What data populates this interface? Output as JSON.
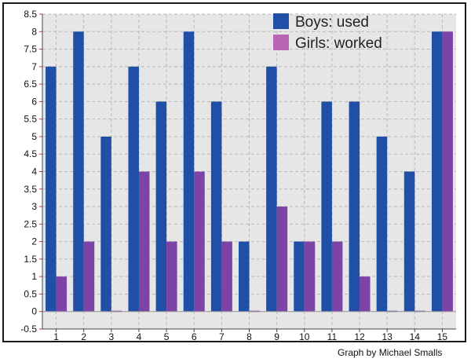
{
  "chart_data": {
    "type": "bar",
    "categories": [
      "1",
      "2",
      "3",
      "4",
      "5",
      "6",
      "7",
      "8",
      "9",
      "10",
      "11",
      "12",
      "13",
      "14",
      "15"
    ],
    "series": [
      {
        "name": "Boys: used",
        "color": "#1f4fa6",
        "values": [
          7,
          8,
          5,
          7,
          6,
          8,
          6,
          2,
          7,
          2,
          6,
          6,
          5,
          4,
          8
        ]
      },
      {
        "name": "Girls: worked",
        "color": "#7d43a6",
        "values": [
          1,
          2,
          0,
          4,
          2,
          4,
          2,
          0,
          3,
          2,
          2,
          1,
          0,
          0,
          8
        ]
      }
    ],
    "legend_colors": [
      "#1f4fa6",
      "#b967b4"
    ],
    "ylim": [
      -0.5,
      8.5
    ],
    "yticks": [
      "-0.5",
      "0",
      "0.5",
      "1",
      "1.5",
      "2",
      "2.5",
      "3",
      "3.5",
      "4",
      "4.5",
      "5",
      "5.5",
      "6",
      "6.5",
      "7",
      "7.5",
      "8",
      "8.5"
    ],
    "grid": true,
    "legend_position": "top-right",
    "plot_background": "#e6e6e6",
    "xlabel": "",
    "ylabel": ""
  },
  "credit": "Graph by Michael Smalls"
}
